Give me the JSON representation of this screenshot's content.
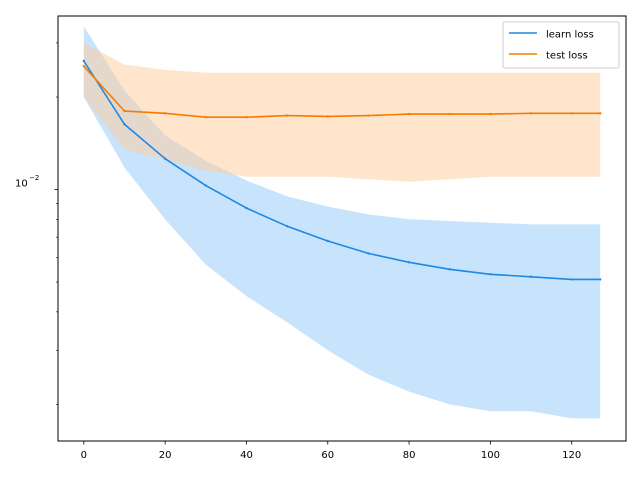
{
  "chart_data": {
    "type": "line",
    "title": "",
    "xlabel": "",
    "ylabel": "",
    "xlim": [
      -6.35,
      133.35
    ],
    "ylim": [
      0.00152,
      0.0367
    ],
    "yscale": "log",
    "grid": false,
    "legend_position": "top-right",
    "x_ticks": [
      0,
      20,
      40,
      60,
      80,
      100,
      120
    ],
    "x_tick_labels": [
      "0",
      "20",
      "40",
      "60",
      "80",
      "100",
      "120"
    ],
    "y_major_ticks": [
      0.01
    ],
    "y_major_labels": [
      "10",
      "−2"
    ],
    "y_minor_ticks": [
      0.002,
      0.003,
      0.004,
      0.005,
      0.006,
      0.007,
      0.008,
      0.009,
      0.02,
      0.03
    ],
    "x": [
      0,
      10,
      20,
      30,
      40,
      50,
      60,
      70,
      80,
      90,
      100,
      110,
      120,
      127
    ],
    "series": [
      {
        "name": "learn loss",
        "color": "#1f77b4",
        "line_color": "#1e88e5",
        "band_color": "#90caf9",
        "mean": [
          0.0262,
          0.0163,
          0.0126,
          0.0103,
          0.0087,
          0.0076,
          0.0068,
          0.0062,
          0.0058,
          0.0055,
          0.0053,
          0.0052,
          0.0051,
          0.0051
        ],
        "upper": [
          0.034,
          0.021,
          0.015,
          0.0124,
          0.0107,
          0.0095,
          0.0088,
          0.0083,
          0.008,
          0.0079,
          0.0078,
          0.0077,
          0.0077,
          0.0077
        ],
        "lower": [
          0.02,
          0.0118,
          0.008,
          0.0057,
          0.0045,
          0.0037,
          0.003,
          0.0025,
          0.0022,
          0.002,
          0.0019,
          0.0019,
          0.0018,
          0.0018
        ]
      },
      {
        "name": "test loss",
        "color": "#ff7f0e",
        "line_color": "#f57c00",
        "band_color": "#ffcc99",
        "mean": [
          0.0252,
          0.018,
          0.0177,
          0.0172,
          0.0172,
          0.0174,
          0.0173,
          0.0174,
          0.0176,
          0.0176,
          0.0176,
          0.0177,
          0.0177,
          0.0177
        ],
        "upper": [
          0.03,
          0.0255,
          0.0245,
          0.024,
          0.024,
          0.024,
          0.024,
          0.024,
          0.024,
          0.024,
          0.024,
          0.024,
          0.024,
          0.024
        ],
        "lower": [
          0.02,
          0.0135,
          0.0125,
          0.0115,
          0.011,
          0.011,
          0.011,
          0.0108,
          0.0106,
          0.0108,
          0.011,
          0.011,
          0.011,
          0.011
        ]
      }
    ]
  }
}
